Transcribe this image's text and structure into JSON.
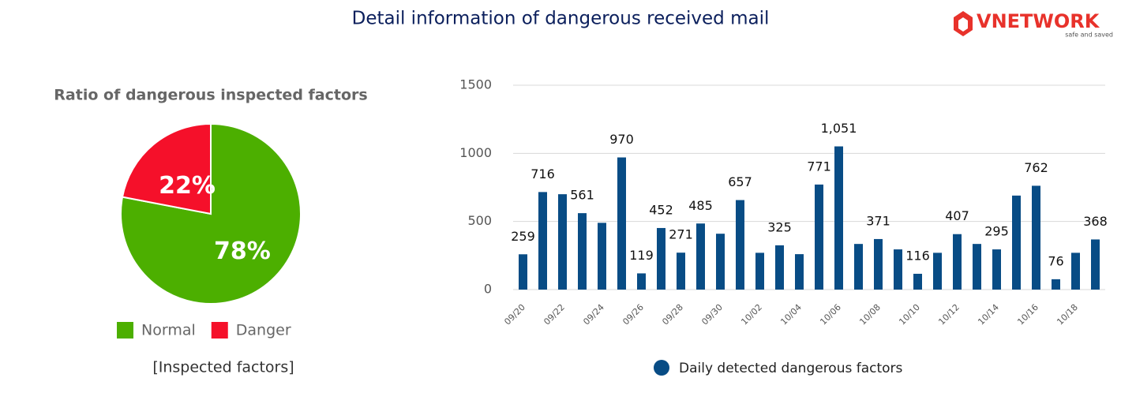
{
  "header": {
    "title": "Detail information of dangerous received mail",
    "logo": "VNETWORK",
    "tagline": "safe and saved"
  },
  "chart_data": [
    {
      "type": "pie",
      "title": "Ratio of dangerous inspected factors",
      "caption": "[Inspected factors]",
      "categories": [
        "Normal",
        "Danger"
      ],
      "values": [
        78,
        22
      ],
      "value_labels": [
        "78%",
        "22%"
      ],
      "colors": [
        "#4caf00",
        "#f5102a"
      ],
      "legend": "bottom"
    },
    {
      "type": "bar",
      "legend": "bottom",
      "grid": true,
      "color": "#084c85",
      "categories": [
        "09/20",
        null,
        "09/22",
        null,
        "09/24",
        null,
        "09/26",
        null,
        "09/28",
        null,
        "09/30",
        null,
        "10/02",
        null,
        "10/04",
        null,
        "10/06",
        null,
        "10/08",
        null,
        "10/10",
        null,
        "10/12",
        null,
        "10/14",
        null,
        "10/16",
        null,
        "10/18",
        null
      ],
      "series": [
        {
          "name": "Daily detected dangerous factors",
          "color": "#084c85",
          "values": [
            259,
            716,
            700,
            561,
            490,
            970,
            119,
            452,
            271,
            485,
            410,
            657,
            270,
            325,
            260,
            771,
            1051,
            335,
            371,
            295,
            116,
            270,
            407,
            335,
            295,
            690,
            762,
            76,
            270,
            368
          ],
          "value_labels": [
            "259",
            "716",
            null,
            "561",
            null,
            "970",
            "119",
            "452",
            "271",
            "485",
            null,
            "657",
            null,
            "325",
            null,
            "771",
            "1,051",
            null,
            "371",
            null,
            "116",
            null,
            "407",
            null,
            "295",
            null,
            "762",
            "76",
            null,
            "368"
          ]
        }
      ],
      "ylim": [
        0,
        1500
      ],
      "yticks": [
        0,
        500,
        1000,
        1500
      ]
    }
  ]
}
